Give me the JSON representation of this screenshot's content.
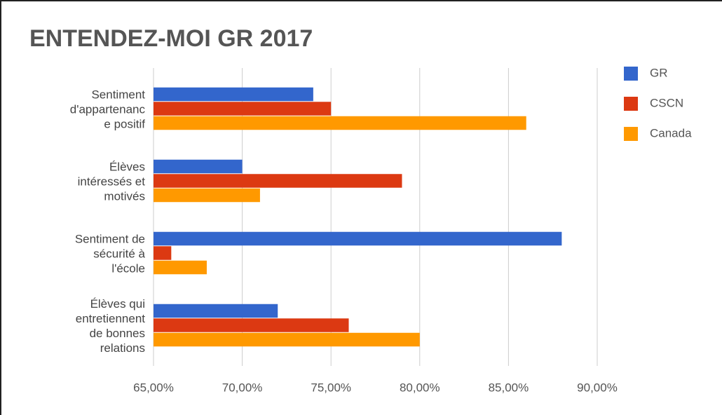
{
  "chart_data": {
    "type": "bar",
    "orientation": "horizontal",
    "title": "ENTENDEZ-MOI GR 2017",
    "categories": [
      "Sentiment\nd'appartenanc\ne positif",
      "Élèves\nintéressés et\nmotivés",
      "Sentiment de\nsécurité à\nl'école",
      "Élèves qui\nentretiennent\nde bonnes\nrelations"
    ],
    "series": [
      {
        "name": "GR",
        "color": "#3366cc",
        "values": [
          74,
          70,
          88,
          72
        ]
      },
      {
        "name": "CSCN",
        "color": "#dc3912",
        "values": [
          75,
          79,
          66,
          76
        ]
      },
      {
        "name": "Canada",
        "color": "#ff9900",
        "values": [
          86,
          71,
          68,
          80
        ]
      }
    ],
    "xlim": [
      65,
      90
    ],
    "xticks": [
      {
        "value": 65,
        "label": "65,00%"
      },
      {
        "value": 70,
        "label": "70,00%"
      },
      {
        "value": 75,
        "label": "75,00%"
      },
      {
        "value": 80,
        "label": "80,00%"
      },
      {
        "value": 85,
        "label": "85,00%"
      },
      {
        "value": 90,
        "label": "90,00%"
      }
    ],
    "grid": true,
    "legend": "right"
  }
}
